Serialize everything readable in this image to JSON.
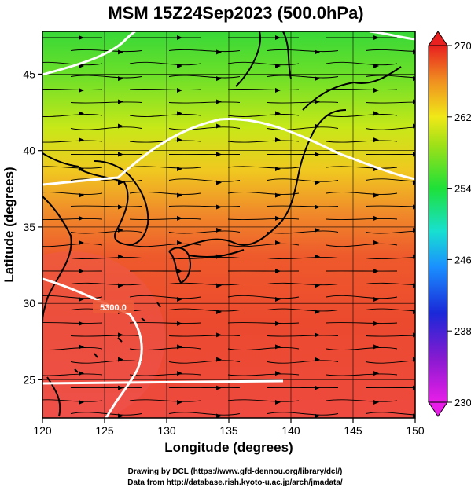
{
  "chart_data": {
    "type": "heatmap",
    "title": "MSM 15Z24Sep2023 (500.0hPa)",
    "xlabel": "Longitude (degrees)",
    "ylabel": "Latitude  (degrees)",
    "xlim": [
      120,
      150
    ],
    "ylim": [
      22.5,
      47.8
    ],
    "x_ticks": [
      120,
      125,
      130,
      135,
      140,
      145,
      150
    ],
    "y_ticks": [
      25,
      30,
      35,
      40,
      45
    ],
    "grid": true,
    "colorbar": {
      "min": 230,
      "max": 270,
      "ticks": [
        230,
        238,
        246,
        254,
        262,
        270
      ]
    },
    "contour_label": "5300.0",
    "layers": [
      "temperature shading",
      "streamlines",
      "geopotential height contours",
      "coastlines"
    ]
  },
  "credits": {
    "line1": "Drawing by DCL (https://www.gfd-dennou.org/library/dcl/)",
    "line2": "Data from http://database.rish.kyoto-u.ac.jp/arch/jmadata/"
  }
}
